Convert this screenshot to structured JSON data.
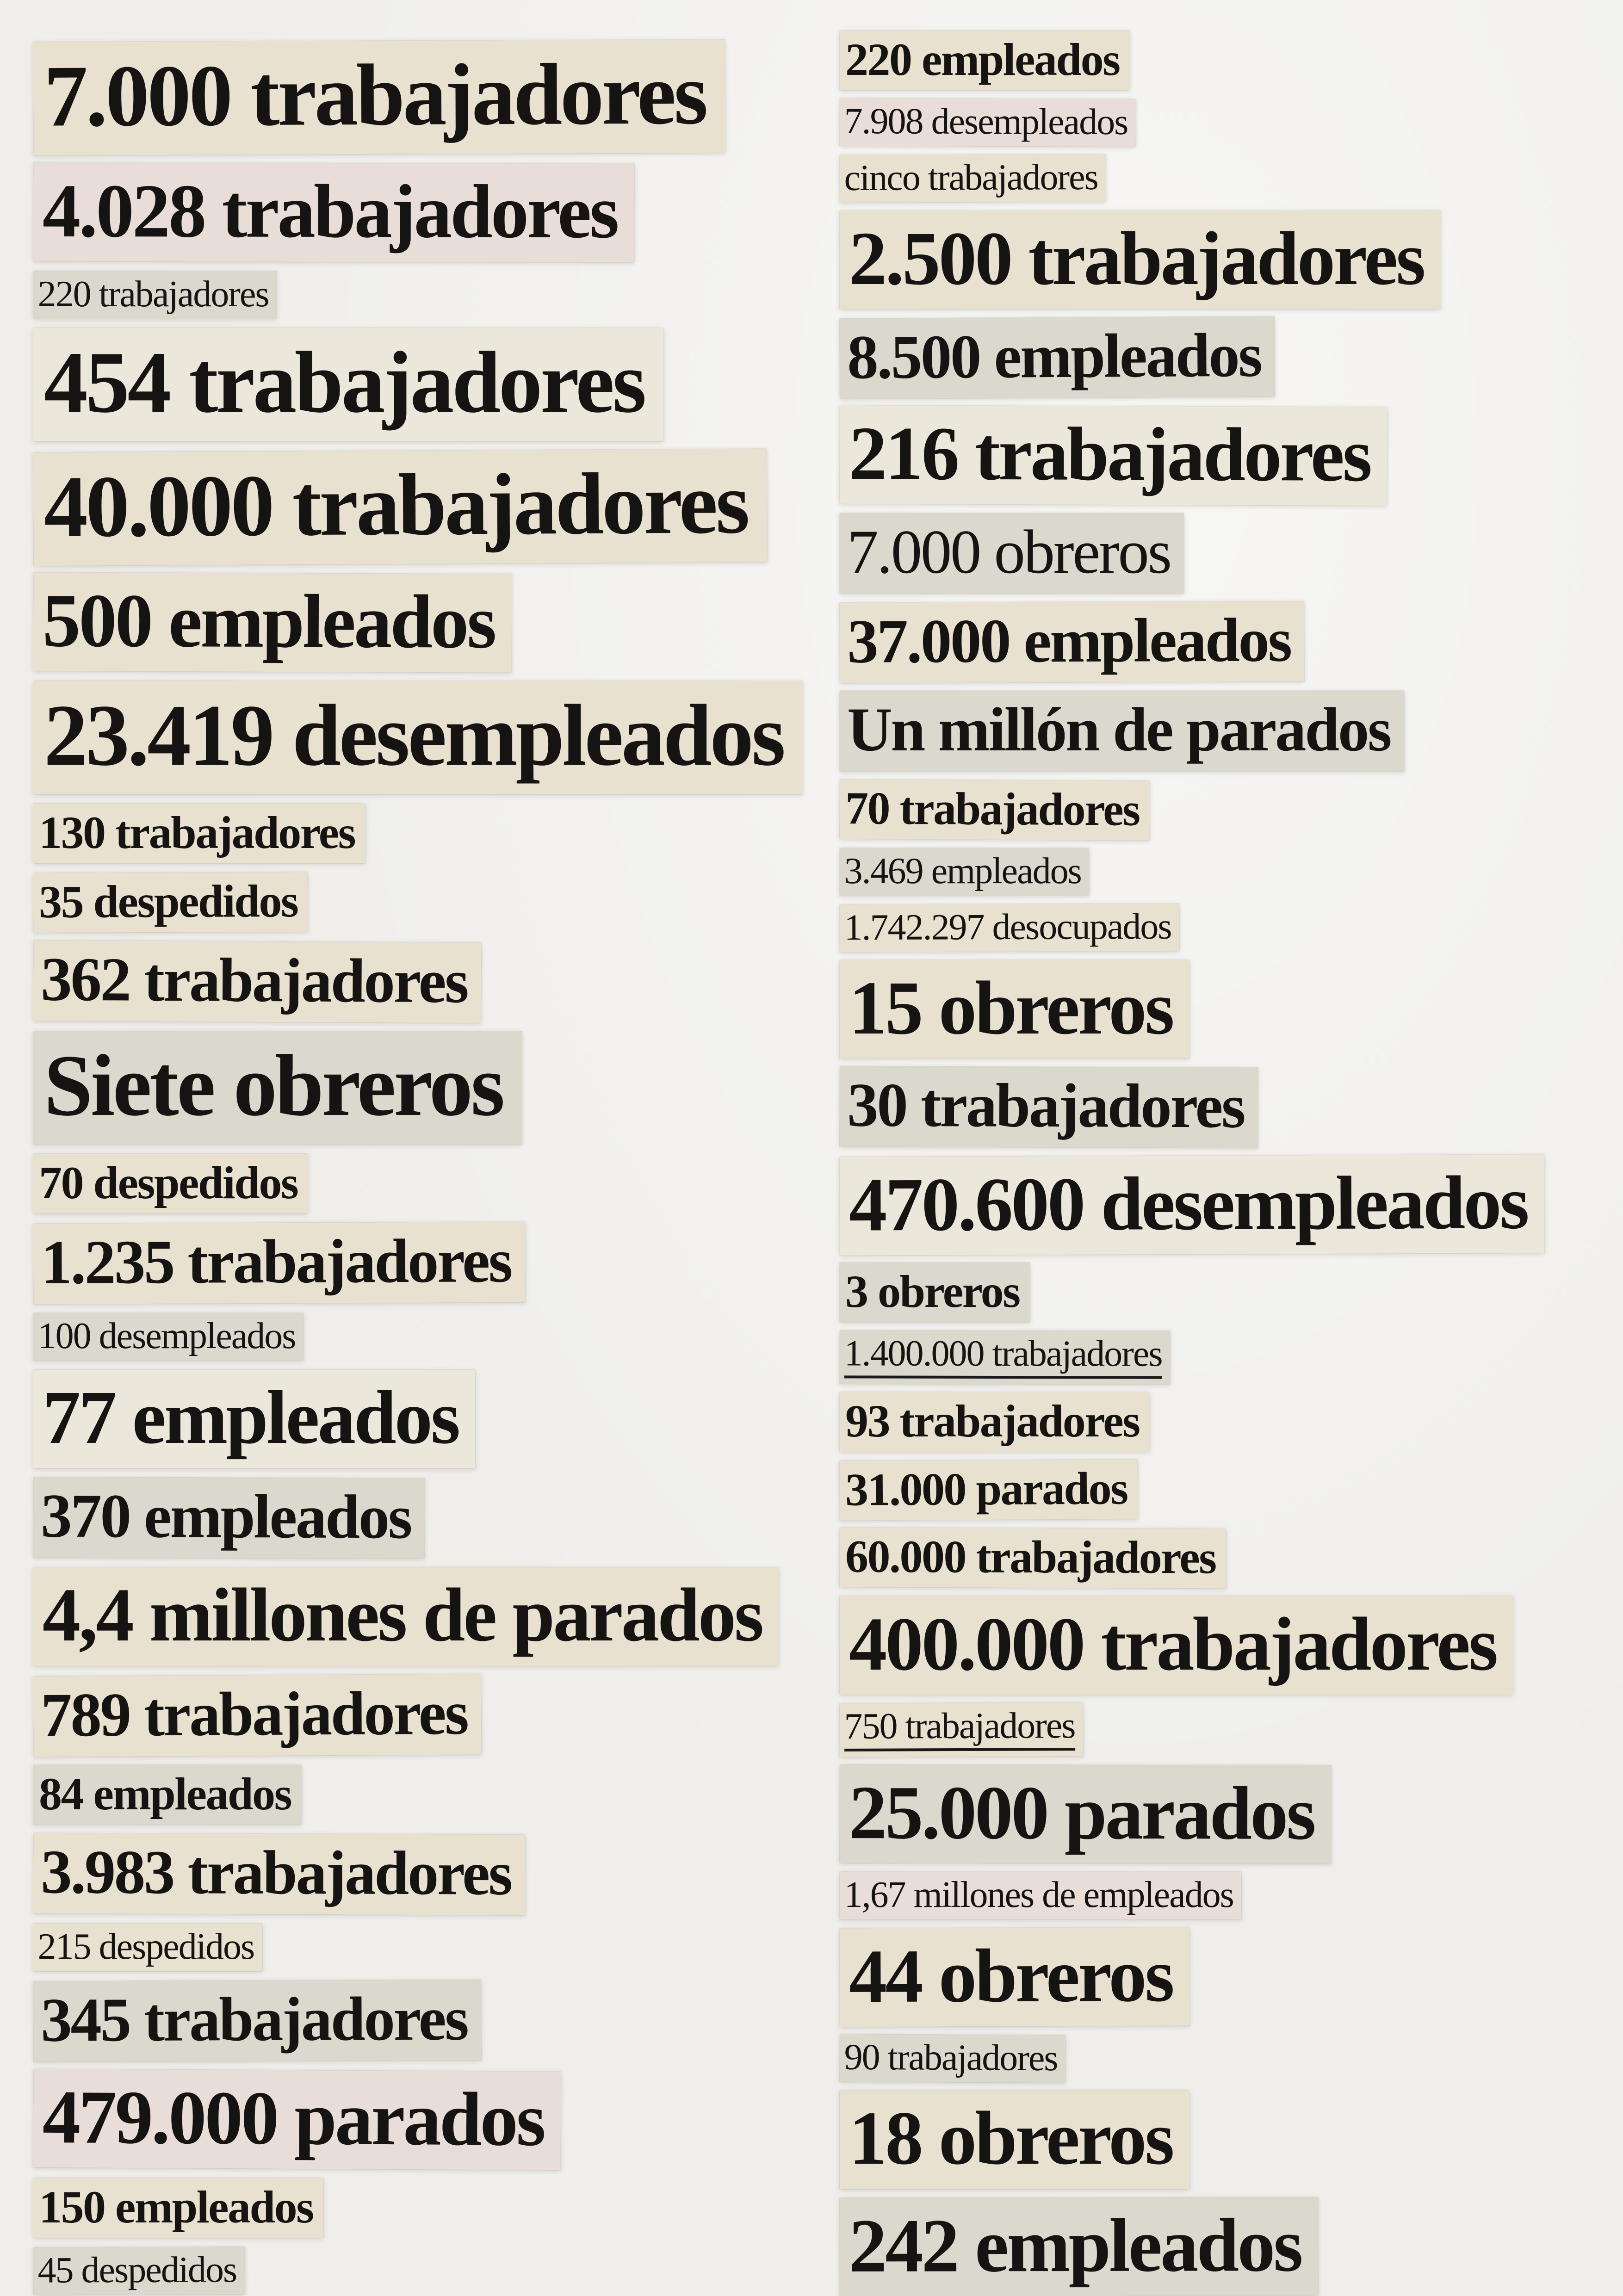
{
  "document": {
    "kind": "newspaper-clippings-collage",
    "language": "es"
  },
  "columns": {
    "left": [
      {
        "text": "7.000 trabajadores",
        "size": "s1",
        "weight": "b",
        "tint": "cream",
        "tilt": -0.2,
        "underline": false
      },
      {
        "text": "4.028 trabajadores",
        "size": "s2",
        "weight": "b",
        "tint": "pink",
        "tilt": 0.1,
        "underline": false
      },
      {
        "text": "220 trabajadores",
        "size": "s5",
        "weight": "r",
        "tint": "gray",
        "tilt": 0,
        "underline": false
      },
      {
        "text": "454 trabajadores",
        "size": "s1",
        "weight": "b",
        "tint": "pale",
        "tilt": 0,
        "underline": false
      },
      {
        "text": "40.000 trabajadores",
        "size": "s1",
        "weight": "b",
        "tint": "cream",
        "tilt": -0.3,
        "underline": false
      },
      {
        "text": "500 empleados",
        "size": "s2",
        "weight": "b",
        "tint": "cream",
        "tilt": 0.2,
        "underline": false
      },
      {
        "text": "23.419 desempleados",
        "size": "s1",
        "weight": "b",
        "tint": "cream",
        "tilt": 0,
        "underline": false
      },
      {
        "text": "130 trabajadores",
        "size": "s4",
        "weight": "b",
        "tint": "cream",
        "tilt": 0,
        "underline": false
      },
      {
        "text": "35 despedidos",
        "size": "s4",
        "weight": "b",
        "tint": "cream",
        "tilt": -0.2,
        "underline": false
      },
      {
        "text": "362 trabajadores",
        "size": "s3",
        "weight": "b",
        "tint": "cream",
        "tilt": 0.3,
        "underline": false
      },
      {
        "text": "Siete obreros",
        "size": "s1",
        "weight": "b",
        "tint": "gray",
        "tilt": 0,
        "underline": false
      },
      {
        "text": "70 despedidos",
        "size": "s4",
        "weight": "b",
        "tint": "cream",
        "tilt": 0,
        "underline": false
      },
      {
        "text": "1.235 trabajadores",
        "size": "s3",
        "weight": "b",
        "tint": "cream",
        "tilt": -0.2,
        "underline": false
      },
      {
        "text": "100 desempleados",
        "size": "s5",
        "weight": "r",
        "tint": "gray",
        "tilt": 0,
        "underline": false
      },
      {
        "text": "77 empleados",
        "size": "s2",
        "weight": "b",
        "tint": "pale",
        "tilt": 0,
        "underline": false
      },
      {
        "text": "370 empleados",
        "size": "s3",
        "weight": "b",
        "tint": "gray",
        "tilt": 0.2,
        "underline": false
      },
      {
        "text": "4,4 millones de parados",
        "size": "s2",
        "weight": "b",
        "tint": "cream",
        "tilt": 0,
        "underline": false
      },
      {
        "text": "789 trabajadores",
        "size": "s3",
        "weight": "b",
        "tint": "cream",
        "tilt": -0.3,
        "underline": false
      },
      {
        "text": "84 empleados",
        "size": "s4",
        "weight": "b",
        "tint": "gray",
        "tilt": 0,
        "underline": false
      },
      {
        "text": "3.983 trabajadores",
        "size": "s3",
        "weight": "b",
        "tint": "cream",
        "tilt": 0.2,
        "underline": false
      },
      {
        "text": "215 despedidos",
        "size": "s5",
        "weight": "r",
        "tint": "cream",
        "tilt": 0,
        "underline": false
      },
      {
        "text": "345 trabajadores",
        "size": "s3",
        "weight": "b",
        "tint": "gray",
        "tilt": -0.2,
        "underline": false
      },
      {
        "text": "479.000 parados",
        "size": "s2",
        "weight": "b",
        "tint": "pink",
        "tilt": 0.3,
        "underline": false
      },
      {
        "text": "150 empleados",
        "size": "s4",
        "weight": "b",
        "tint": "cream",
        "tilt": 0,
        "underline": false
      },
      {
        "text": "45 despedidos",
        "size": "s5",
        "weight": "r",
        "tint": "gray",
        "tilt": -0.2,
        "underline": false
      }
    ],
    "right": [
      {
        "text": "220 empleados",
        "size": "s4",
        "weight": "b",
        "tint": "cream",
        "tilt": 0,
        "underline": false
      },
      {
        "text": "7.908 desempleados",
        "size": "s5",
        "weight": "r",
        "tint": "pink",
        "tilt": 0.2,
        "underline": false
      },
      {
        "text": "cinco trabajadores",
        "size": "s5",
        "weight": "r",
        "tint": "cream",
        "tilt": -0.2,
        "underline": false
      },
      {
        "text": "2.500 trabajadores",
        "size": "s2",
        "weight": "b",
        "tint": "cream",
        "tilt": 0,
        "underline": false
      },
      {
        "text": "8.500 empleados",
        "size": "s3",
        "weight": "b",
        "tint": "gray",
        "tilt": -0.3,
        "underline": false
      },
      {
        "text": "216 trabajadores",
        "size": "s2",
        "weight": "b",
        "tint": "pale",
        "tilt": 0.2,
        "underline": false
      },
      {
        "text": "7.000 obreros",
        "size": "s3",
        "weight": "r",
        "tint": "gray",
        "tilt": 0,
        "underline": false
      },
      {
        "text": "37.000 empleados",
        "size": "s3",
        "weight": "b",
        "tint": "cream",
        "tilt": -0.2,
        "underline": false
      },
      {
        "text": "Un millón de parados",
        "size": "s3",
        "weight": "b",
        "tint": "gray",
        "tilt": 0,
        "underline": false
      },
      {
        "text": "70 trabajadores",
        "size": "s4",
        "weight": "b",
        "tint": "cream",
        "tilt": 0.3,
        "underline": false
      },
      {
        "text": "3.469 empleados",
        "size": "s5",
        "weight": "r",
        "tint": "gray",
        "tilt": 0,
        "underline": false
      },
      {
        "text": "1.742.297 desocupados",
        "size": "s5",
        "weight": "r",
        "tint": "cream",
        "tilt": -0.2,
        "underline": false
      },
      {
        "text": "15 obreros",
        "size": "s2",
        "weight": "b",
        "tint": "cream",
        "tilt": 0,
        "underline": false
      },
      {
        "text": "30 trabajadores",
        "size": "s3",
        "weight": "b",
        "tint": "gray",
        "tilt": 0.2,
        "underline": false
      },
      {
        "text": "470.600 desempleados",
        "size": "s2",
        "weight": "b",
        "tint": "pale",
        "tilt": -0.2,
        "underline": false
      },
      {
        "text": "3 obreros",
        "size": "s4",
        "weight": "b",
        "tint": "gray",
        "tilt": 0,
        "underline": false
      },
      {
        "text": "1.400.000 trabajadores",
        "size": "s5",
        "weight": "r",
        "tint": "gray",
        "tilt": 0.1,
        "underline": true
      },
      {
        "text": "93 trabajadores",
        "size": "s4",
        "weight": "b",
        "tint": "cream",
        "tilt": 0,
        "underline": false
      },
      {
        "text": "31.000 parados",
        "size": "s4",
        "weight": "b",
        "tint": "cream",
        "tilt": -0.3,
        "underline": false
      },
      {
        "text": "60.000 trabajadores",
        "size": "s4",
        "weight": "b",
        "tint": "cream",
        "tilt": 0.2,
        "underline": false
      },
      {
        "text": "400.000 trabajadores",
        "size": "s2",
        "weight": "b",
        "tint": "cream",
        "tilt": 0,
        "underline": false
      },
      {
        "text": "750 trabajadores",
        "size": "s5",
        "weight": "r",
        "tint": "cream",
        "tilt": -0.2,
        "underline": true
      },
      {
        "text": "25.000 parados",
        "size": "s2",
        "weight": "b",
        "tint": "gray",
        "tilt": 0.1,
        "underline": false
      },
      {
        "text": "1,67 millones de empleados",
        "size": "s5",
        "weight": "r",
        "tint": "pink",
        "tilt": 0,
        "underline": false
      },
      {
        "text": "44 obreros",
        "size": "s2",
        "weight": "b",
        "tint": "cream",
        "tilt": -0.2,
        "underline": false
      },
      {
        "text": "90 trabajadores",
        "size": "s5",
        "weight": "r",
        "tint": "gray",
        "tilt": 0.3,
        "underline": false
      },
      {
        "text": "18 obreros",
        "size": "s2",
        "weight": "b",
        "tint": "cream",
        "tilt": 0,
        "underline": false
      },
      {
        "text": "242 empleados",
        "size": "s2",
        "weight": "b",
        "tint": "gray",
        "tilt": -0.1,
        "underline": false
      }
    ]
  }
}
